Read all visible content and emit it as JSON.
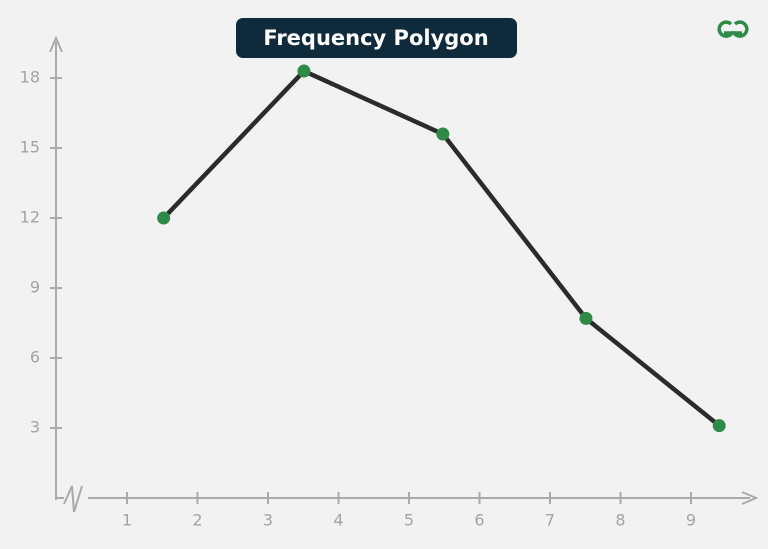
{
  "chart_data": {
    "type": "line",
    "title": "Frequency Polygon",
    "x": [
      1.52,
      3.51,
      5.48,
      7.51,
      9.4
    ],
    "series": [
      {
        "color": "#2b2b2b",
        "marker_color": "#2e8b47",
        "values": [
          12,
          18.3,
          15.6,
          7.7,
          3.1
        ]
      }
    ],
    "xlim": [
      0,
      9.9
    ],
    "ylim": [
      0,
      19.7
    ],
    "xticks": [
      1,
      2,
      3,
      4,
      5,
      6,
      7,
      8,
      9
    ],
    "yticks": [
      3,
      6,
      9,
      12,
      15,
      18
    ],
    "grid": false
  }
}
